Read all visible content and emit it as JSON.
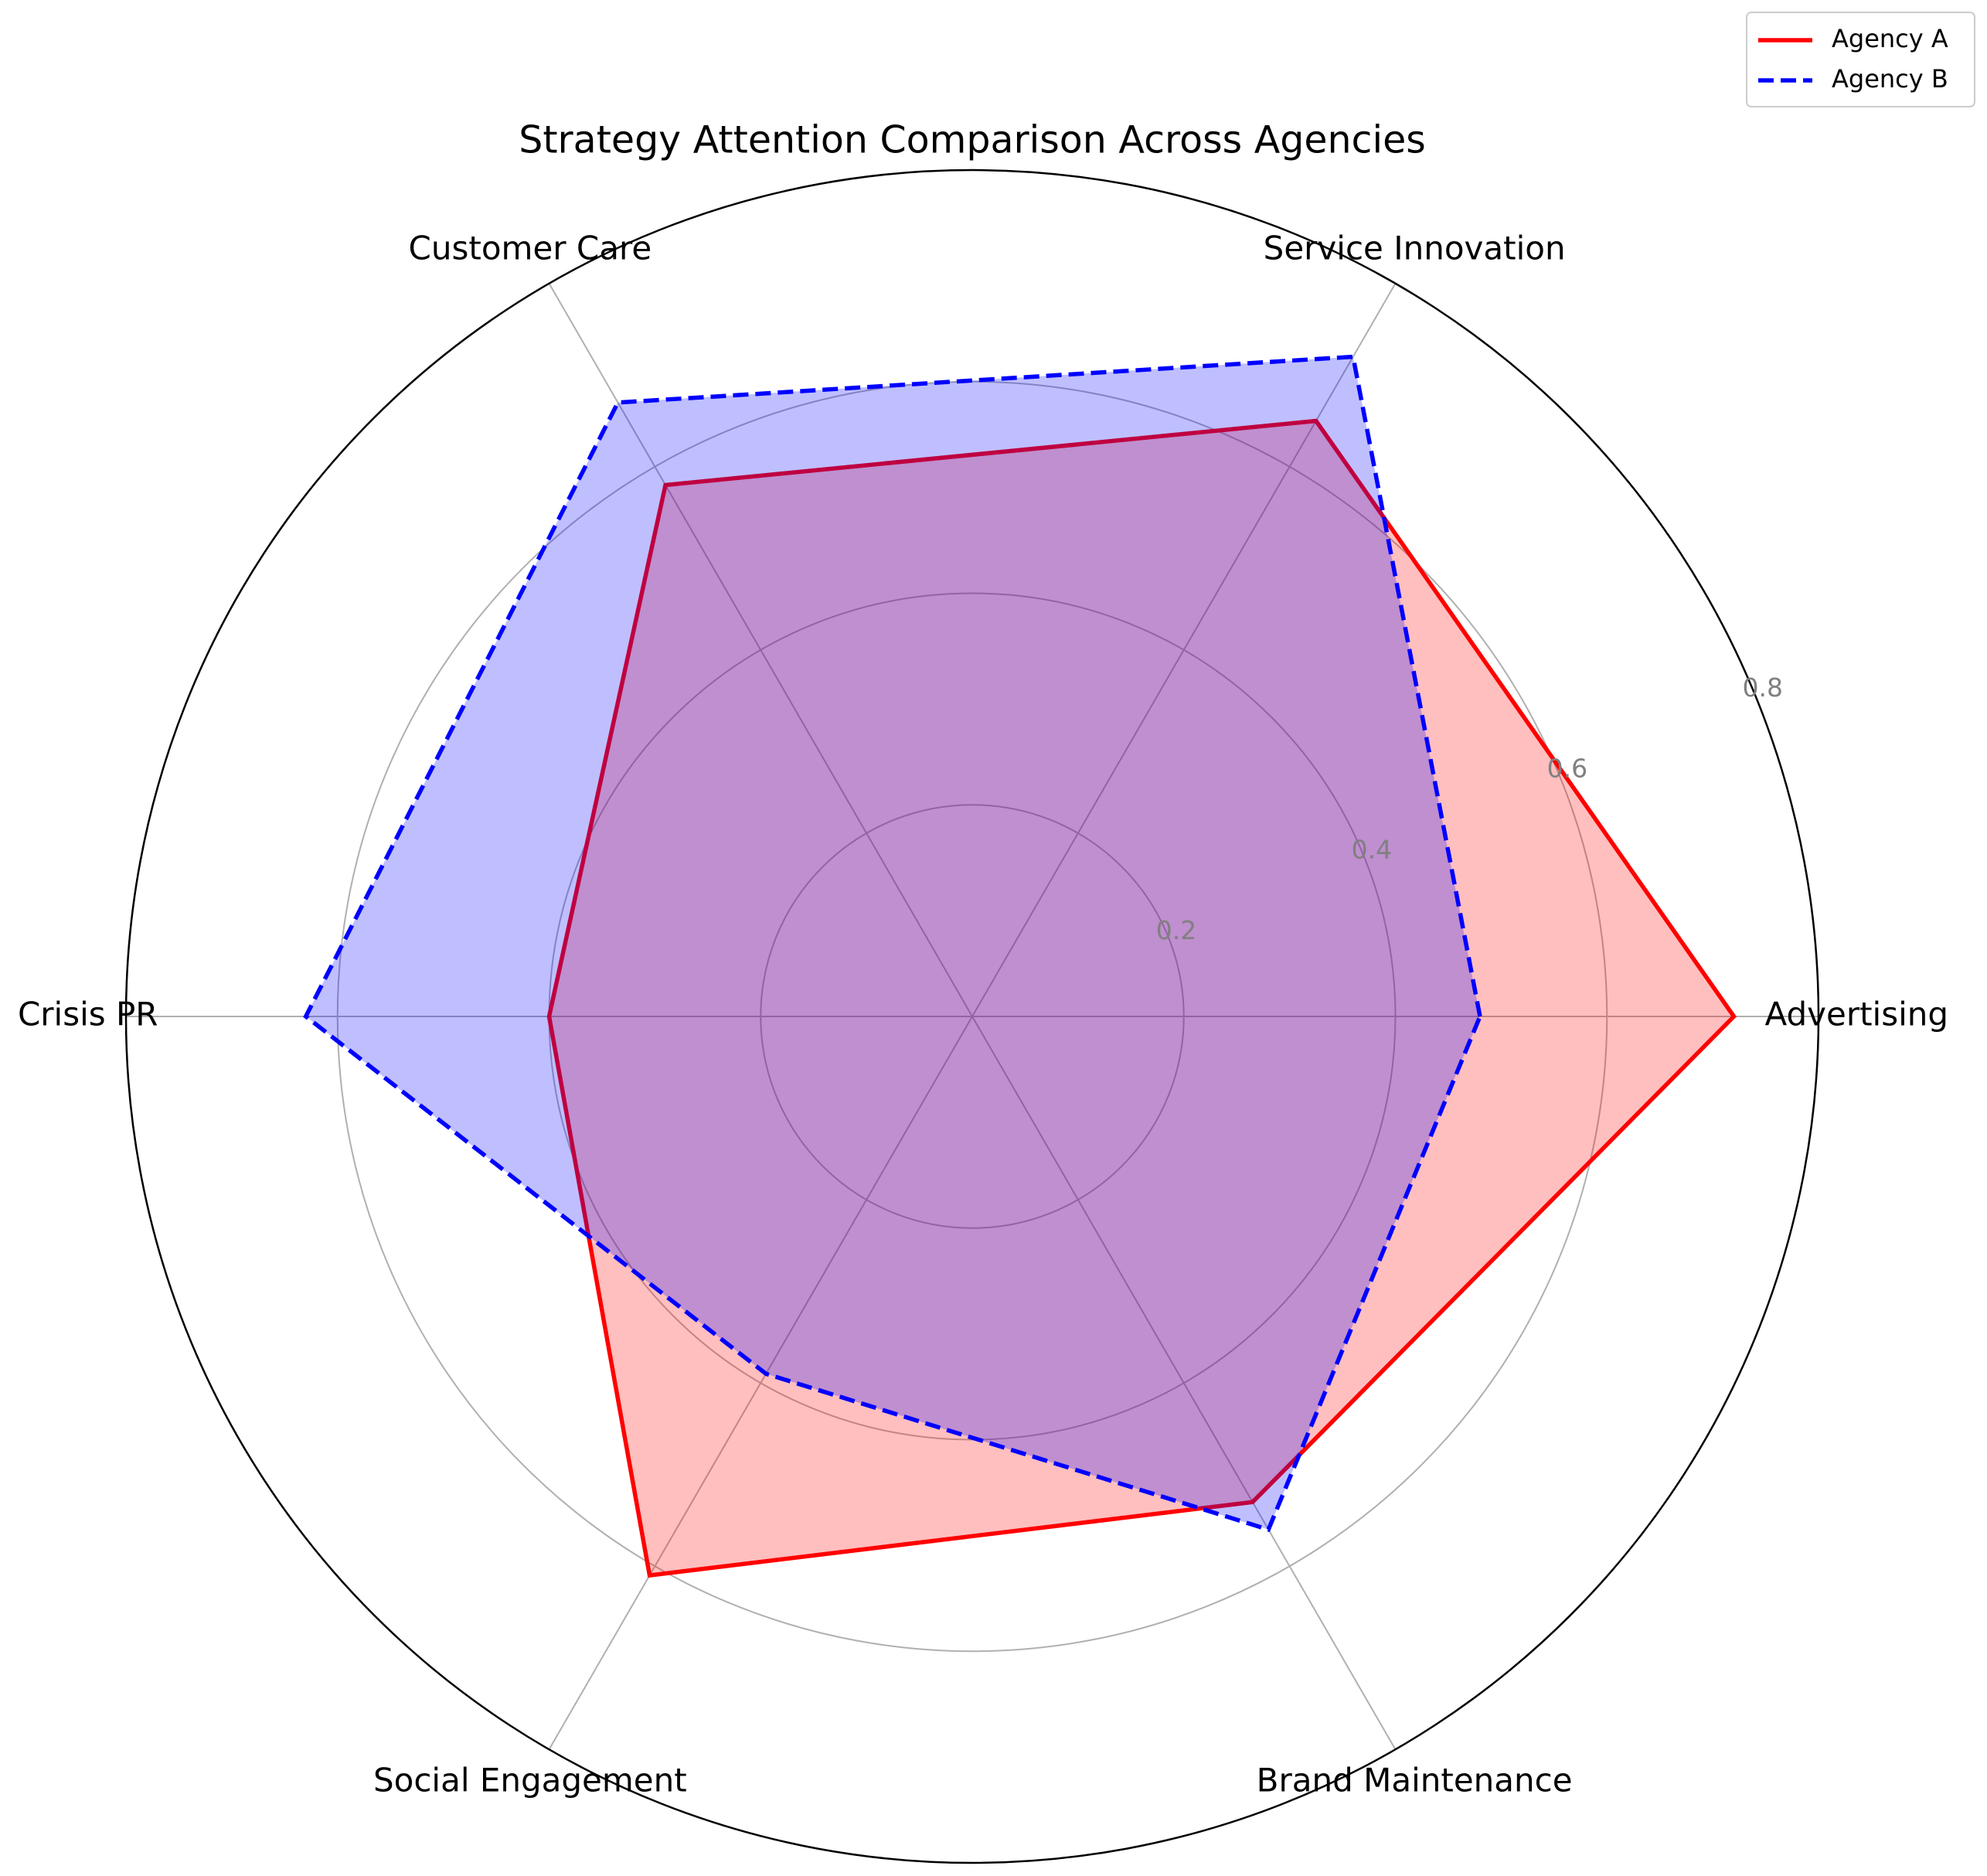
{
  "chart_data": {
    "type": "radar",
    "title": "Strategy Attention Comparison Across Agencies",
    "categories": [
      "Advertising",
      "Service Innovation",
      "Customer Care",
      "Crisis PR",
      "Social Engagement",
      "Brand Maintenance"
    ],
    "series": [
      {
        "name": "Agency A",
        "color": "#ff0000",
        "linestyle": "solid",
        "values": [
          0.72,
          0.65,
          0.58,
          0.4,
          0.61,
          0.53
        ]
      },
      {
        "name": "Agency B",
        "color": "#0000ff",
        "linestyle": "dashed",
        "values": [
          0.48,
          0.72,
          0.67,
          0.63,
          0.39,
          0.56
        ]
      }
    ],
    "ylim": [
      0,
      0.8
    ],
    "yticks": [
      0.2,
      0.4,
      0.6,
      0.8
    ],
    "grid": true,
    "legend": "upper right"
  }
}
